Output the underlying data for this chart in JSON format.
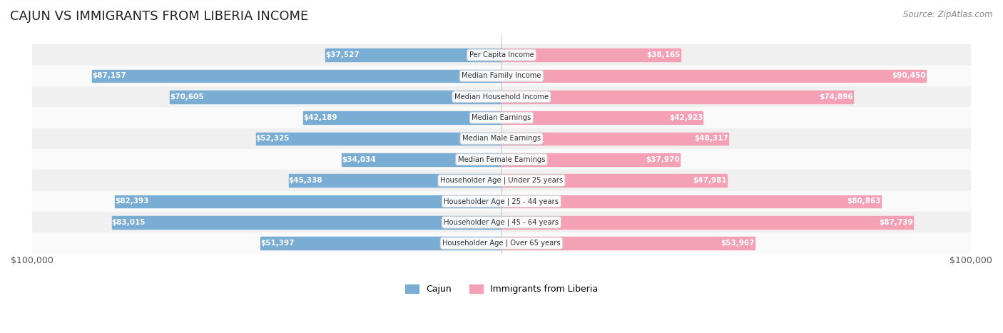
{
  "title": "CAJUN VS IMMIGRANTS FROM LIBERIA INCOME",
  "source": "Source: ZipAtlas.com",
  "categories": [
    "Per Capita Income",
    "Median Family Income",
    "Median Household Income",
    "Median Earnings",
    "Median Male Earnings",
    "Median Female Earnings",
    "Householder Age | Under 25 years",
    "Householder Age | 25 - 44 years",
    "Householder Age | 45 - 64 years",
    "Householder Age | Over 65 years"
  ],
  "cajun_values": [
    37527,
    87157,
    70605,
    42189,
    52325,
    34034,
    45338,
    82393,
    83015,
    51397
  ],
  "liberia_values": [
    38165,
    90450,
    74896,
    42923,
    48317,
    37970,
    47981,
    80863,
    87739,
    53967
  ],
  "cajun_labels": [
    "$37,527",
    "$87,157",
    "$70,605",
    "$42,189",
    "$52,325",
    "$34,034",
    "$45,338",
    "$82,393",
    "$83,015",
    "$51,397"
  ],
  "liberia_labels": [
    "$38,165",
    "$90,450",
    "$74,896",
    "$42,923",
    "$48,317",
    "$37,970",
    "$47,981",
    "$80,863",
    "$87,739",
    "$53,967"
  ],
  "max_value": 100000,
  "cajun_color": "#7aadd4",
  "cajun_color_dark": "#5b9cc4",
  "liberia_color": "#f4a0b5",
  "liberia_color_dark": "#e8728f",
  "label_color_cajun_inside": "#ffffff",
  "label_color_cajun_outside": "#555555",
  "label_color_liberia_inside": "#ffffff",
  "label_color_liberia_outside": "#555555",
  "bg_row_color": "#f0f0f0",
  "bg_row_alt_color": "#fafafa",
  "legend_cajun": "Cajun",
  "legend_liberia": "Immigrants from Liberia"
}
